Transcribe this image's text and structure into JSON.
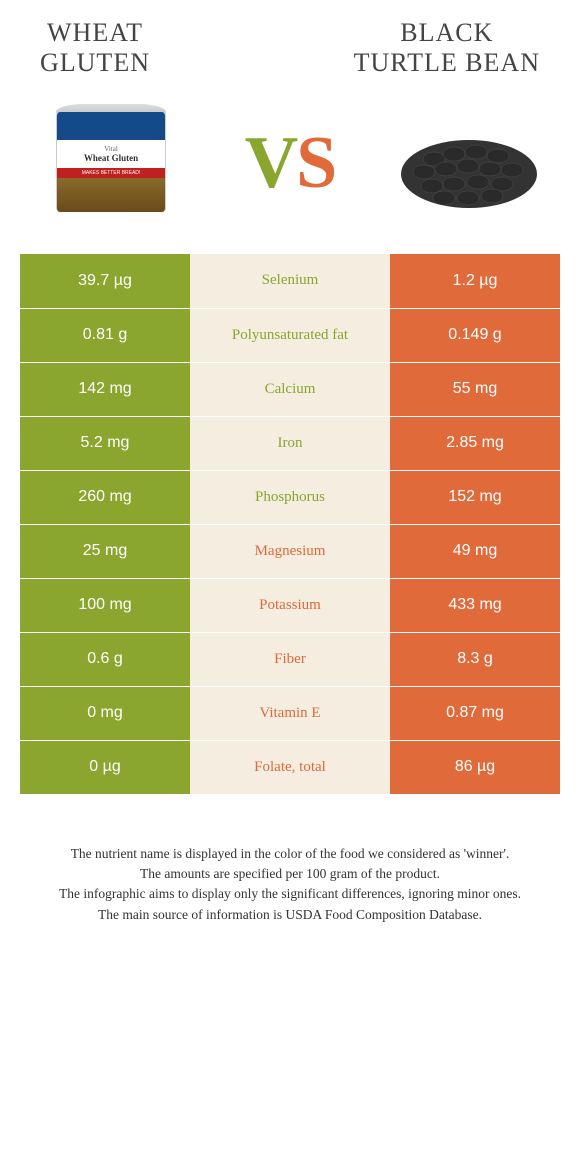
{
  "colors": {
    "left": "#8aa62f",
    "right": "#e06a3a",
    "mid_bg": "#f5ede0",
    "text_white": "#ffffff"
  },
  "header": {
    "left_title": "WHEAT\nGLUTEN",
    "right_title": "BLACK\nTURTLE BEAN"
  },
  "vs": {
    "v": "V",
    "s": "S"
  },
  "can": {
    "line1": "Vital",
    "line2": "Wheat Gluten",
    "red": "MAKES BETTER BREAD!"
  },
  "rows": [
    {
      "left": "39.7 µg",
      "label": "Selenium",
      "right": "1.2 µg",
      "winner": "left"
    },
    {
      "left": "0.81 g",
      "label": "Polyunsaturated fat",
      "right": "0.149 g",
      "winner": "left"
    },
    {
      "left": "142 mg",
      "label": "Calcium",
      "right": "55 mg",
      "winner": "left"
    },
    {
      "left": "5.2 mg",
      "label": "Iron",
      "right": "2.85 mg",
      "winner": "left"
    },
    {
      "left": "260 mg",
      "label": "Phosphorus",
      "right": "152 mg",
      "winner": "left"
    },
    {
      "left": "25 mg",
      "label": "Magnesium",
      "right": "49 mg",
      "winner": "right"
    },
    {
      "left": "100 mg",
      "label": "Potassium",
      "right": "433 mg",
      "winner": "right"
    },
    {
      "left": "0.6 g",
      "label": "Fiber",
      "right": "8.3 g",
      "winner": "right"
    },
    {
      "left": "0 mg",
      "label": "Vitamin E",
      "right": "0.87 mg",
      "winner": "right"
    },
    {
      "left": "0 µg",
      "label": "Folate, total",
      "right": "86 µg",
      "winner": "right"
    }
  ],
  "footer": {
    "line1": "The nutrient name is displayed in the color of the food we considered as 'winner'.",
    "line2": "The amounts are specified per 100 gram of the product.",
    "line3": "The infographic aims to display only the significant differences, ignoring minor ones.",
    "line4": "The main source of information is USDA Food Composition Database."
  }
}
